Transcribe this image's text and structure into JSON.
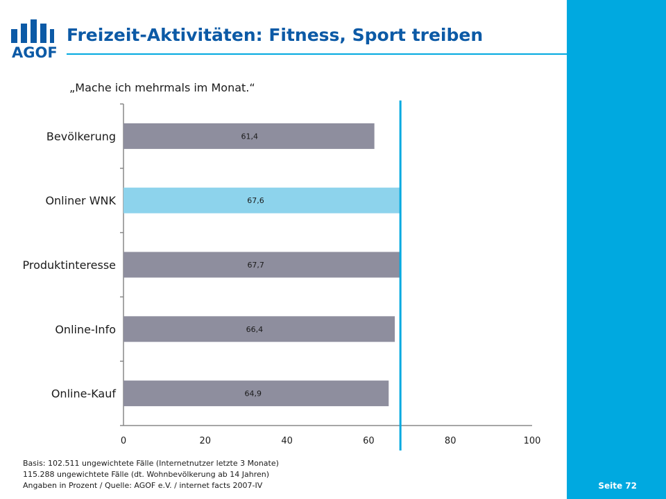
{
  "header": {
    "title": "Freizeit-Aktivitäten: Fitness, Sport treiben",
    "logo_text": "AGOF"
  },
  "subtitle": "„Mache ich mehrmals im Monat.“",
  "footer": {
    "lines": [
      "Basis: 102.511 ungewichtete Fälle (Internetnutzer letzte 3 Monate)",
      "115.288 ungewichtete Fälle (dt. Wohnbevölkerung ab 14 Jahren)",
      "Angaben in Prozent / Quelle: AGOF e.V. / internet facts 2007-IV"
    ],
    "page_number": "Seite 72"
  },
  "colors": {
    "brand_blue": "#0c5aa6",
    "accent_cyan": "#00a9e0",
    "bar_gray": "#8e8e9e",
    "bar_highlight": "#8dd3ec"
  },
  "chart_data": {
    "type": "bar",
    "orientation": "horizontal",
    "categories": [
      "Bevölkerung",
      "Onliner WNK",
      "Produktinteresse",
      "Online-Info",
      "Online-Kauf"
    ],
    "values": [
      61.4,
      67.6,
      67.7,
      66.4,
      64.9
    ],
    "value_labels": [
      "61,4",
      "67,6",
      "67,7",
      "66,4",
      "64,9"
    ],
    "highlight_category": "Onliner WNK",
    "xlim": [
      0,
      100
    ],
    "xticks": [
      0,
      20,
      40,
      60,
      80,
      100
    ],
    "reference_line": 67.6
  }
}
